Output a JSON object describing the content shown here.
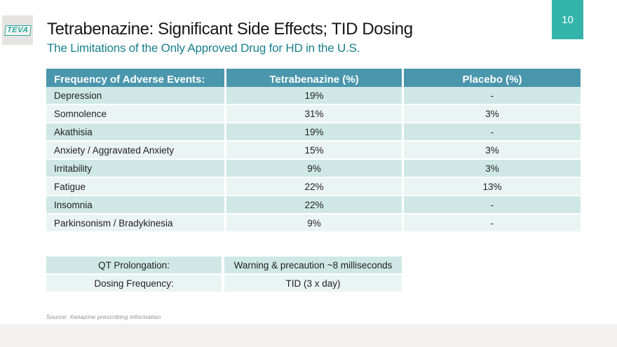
{
  "slide": {
    "page_number": "10",
    "logo_text": "TEVA",
    "title": "Tetrabenazine: Significant Side Effects; TID Dosing",
    "subtitle": "The Limitations of the Only Approved Drug for HD in the U.S.",
    "source": "Source: Xenazine prescribing information"
  },
  "colors": {
    "accent_teal": "#35b4ab",
    "table_header_blue": "#4a96ad",
    "row_dark_teal": "#cfe8e5",
    "row_light_teal": "#eaf5f3",
    "subtitle_teal": "#177f8d"
  },
  "adverse_events_table": {
    "headers": [
      "Frequency of Adverse Events:",
      "Tetrabenazine (%)",
      "Placebo (%)"
    ],
    "rows": [
      {
        "event": "Depression",
        "tetrabenazine": "19%",
        "placebo": "-"
      },
      {
        "event": "Somnolence",
        "tetrabenazine": "31%",
        "placebo": "3%"
      },
      {
        "event": "Akathisia",
        "tetrabenazine": "19%",
        "placebo": "-"
      },
      {
        "event": "Anxiety / Aggravated Anxiety",
        "tetrabenazine": "15%",
        "placebo": "3%"
      },
      {
        "event": "Irritability",
        "tetrabenazine": "9%",
        "placebo": "3%"
      },
      {
        "event": "Fatigue",
        "tetrabenazine": "22%",
        "placebo": "13%"
      },
      {
        "event": "Insomnia",
        "tetrabenazine": "22%",
        "placebo": "-"
      },
      {
        "event": "Parkinsonism / Bradykinesia",
        "tetrabenazine": "9%",
        "placebo": "-"
      }
    ]
  },
  "details_table": {
    "rows": [
      {
        "label": "QT Prolongation:",
        "value": "Warning & precaution ~8 milliseconds"
      },
      {
        "label": "Dosing Frequency:",
        "value": "TID (3 x day)"
      }
    ]
  }
}
